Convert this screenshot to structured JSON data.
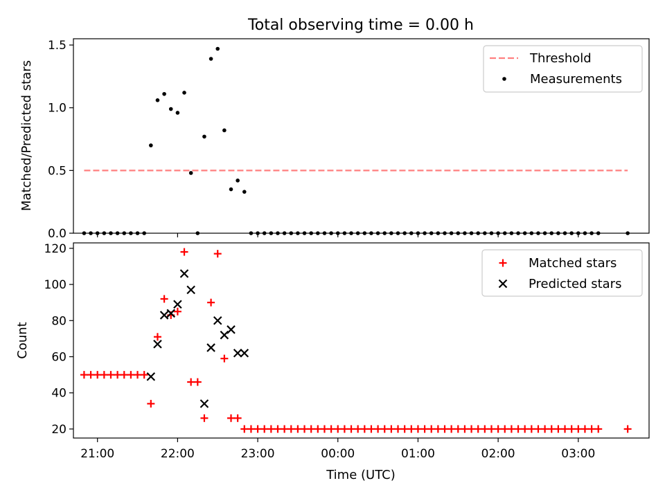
{
  "chart_data": [
    {
      "type": "scatter",
      "title": "Total observing time = 0.00 h",
      "ylabel": "Matched/Predicted stars",
      "xlabel": "",
      "xlim": [
        "20:42",
        "03:53"
      ],
      "ylim": [
        0,
        1.55
      ],
      "yticks": [
        0,
        0.5,
        1.0,
        1.5
      ],
      "ytick_labels": [
        "0.0",
        "0.5",
        "1.0",
        "1.5"
      ],
      "legend_position": "top-right",
      "threshold": {
        "name": "Threshold",
        "value": 0.5,
        "x_start": "20:50",
        "x_end": "03:37",
        "color": "#ff7f7f"
      },
      "series": [
        {
          "name": "Measurements",
          "color": "#000000",
          "points": [
            [
              "20:50",
              0
            ],
            [
              "20:55",
              0
            ],
            [
              "21:00",
              0
            ],
            [
              "21:05",
              0
            ],
            [
              "21:10",
              0
            ],
            [
              "21:15",
              0
            ],
            [
              "21:20",
              0
            ],
            [
              "21:25",
              0
            ],
            [
              "21:30",
              0
            ],
            [
              "21:35",
              0
            ],
            [
              "21:40",
              0.7
            ],
            [
              "21:45",
              1.06
            ],
            [
              "21:50",
              1.11
            ],
            [
              "21:55",
              0.99
            ],
            [
              "22:00",
              0.96
            ],
            [
              "22:05",
              1.12
            ],
            [
              "22:10",
              0.48
            ],
            [
              "22:15",
              0
            ],
            [
              "22:20",
              0.77
            ],
            [
              "22:25",
              1.39
            ],
            [
              "22:30",
              1.47
            ],
            [
              "22:35",
              0.82
            ],
            [
              "22:40",
              0.35
            ],
            [
              "22:45",
              0.42
            ],
            [
              "22:50",
              0.33
            ],
            [
              "22:55",
              0
            ],
            [
              "23:00",
              0
            ],
            [
              "23:05",
              0
            ],
            [
              "23:10",
              0
            ],
            [
              "23:15",
              0
            ],
            [
              "23:20",
              0
            ],
            [
              "23:25",
              0
            ],
            [
              "23:30",
              0
            ],
            [
              "23:35",
              0
            ],
            [
              "23:40",
              0
            ],
            [
              "23:45",
              0
            ],
            [
              "23:50",
              0
            ],
            [
              "23:55",
              0
            ],
            [
              "00:00",
              0
            ],
            [
              "00:05",
              0
            ],
            [
              "00:10",
              0
            ],
            [
              "00:15",
              0
            ],
            [
              "00:20",
              0
            ],
            [
              "00:25",
              0
            ],
            [
              "00:30",
              0
            ],
            [
              "00:35",
              0
            ],
            [
              "00:40",
              0
            ],
            [
              "00:45",
              0
            ],
            [
              "00:50",
              0
            ],
            [
              "00:55",
              0
            ],
            [
              "01:00",
              0
            ],
            [
              "01:05",
              0
            ],
            [
              "01:10",
              0
            ],
            [
              "01:15",
              0
            ],
            [
              "01:20",
              0
            ],
            [
              "01:25",
              0
            ],
            [
              "01:30",
              0
            ],
            [
              "01:35",
              0
            ],
            [
              "01:40",
              0
            ],
            [
              "01:45",
              0
            ],
            [
              "01:50",
              0
            ],
            [
              "01:55",
              0
            ],
            [
              "02:00",
              0
            ],
            [
              "02:05",
              0
            ],
            [
              "02:10",
              0
            ],
            [
              "02:15",
              0
            ],
            [
              "02:20",
              0
            ],
            [
              "02:25",
              0
            ],
            [
              "02:30",
              0
            ],
            [
              "02:35",
              0
            ],
            [
              "02:40",
              0
            ],
            [
              "02:45",
              0
            ],
            [
              "02:50",
              0
            ],
            [
              "02:55",
              0
            ],
            [
              "03:00",
              0
            ],
            [
              "03:05",
              0
            ],
            [
              "03:10",
              0
            ],
            [
              "03:15",
              0
            ],
            [
              "03:37",
              0
            ]
          ]
        }
      ]
    },
    {
      "type": "scatter",
      "title": "",
      "xlabel": "Time (UTC)",
      "ylabel": "Count",
      "xlim": [
        "20:42",
        "03:53"
      ],
      "ylim": [
        15,
        123
      ],
      "xticks": [
        "21:00",
        "22:00",
        "23:00",
        "00:00",
        "01:00",
        "02:00",
        "03:00"
      ],
      "yticks": [
        20,
        40,
        60,
        80,
        100,
        120
      ],
      "legend_position": "top-right",
      "series": [
        {
          "name": "Matched stars",
          "marker": "+",
          "color": "#ff0000",
          "points": [
            [
              "20:50",
              50
            ],
            [
              "20:55",
              50
            ],
            [
              "21:00",
              50
            ],
            [
              "21:05",
              50
            ],
            [
              "21:10",
              50
            ],
            [
              "21:15",
              50
            ],
            [
              "21:20",
              50
            ],
            [
              "21:25",
              50
            ],
            [
              "21:30",
              50
            ],
            [
              "21:35",
              50
            ],
            [
              "21:40",
              34
            ],
            [
              "21:45",
              71
            ],
            [
              "21:50",
              92
            ],
            [
              "21:55",
              83
            ],
            [
              "22:00",
              85
            ],
            [
              "22:05",
              118
            ],
            [
              "22:10",
              46
            ],
            [
              "22:15",
              46
            ],
            [
              "22:20",
              26
            ],
            [
              "22:25",
              90
            ],
            [
              "22:30",
              117
            ],
            [
              "22:35",
              59
            ],
            [
              "22:40",
              26
            ],
            [
              "22:45",
              26
            ],
            [
              "22:50",
              20
            ],
            [
              "22:55",
              20
            ],
            [
              "23:00",
              20
            ],
            [
              "23:05",
              20
            ],
            [
              "23:10",
              20
            ],
            [
              "23:15",
              20
            ],
            [
              "23:20",
              20
            ],
            [
              "23:25",
              20
            ],
            [
              "23:30",
              20
            ],
            [
              "23:35",
              20
            ],
            [
              "23:40",
              20
            ],
            [
              "23:45",
              20
            ],
            [
              "23:50",
              20
            ],
            [
              "23:55",
              20
            ],
            [
              "00:00",
              20
            ],
            [
              "00:05",
              20
            ],
            [
              "00:10",
              20
            ],
            [
              "00:15",
              20
            ],
            [
              "00:20",
              20
            ],
            [
              "00:25",
              20
            ],
            [
              "00:30",
              20
            ],
            [
              "00:35",
              20
            ],
            [
              "00:40",
              20
            ],
            [
              "00:45",
              20
            ],
            [
              "00:50",
              20
            ],
            [
              "00:55",
              20
            ],
            [
              "01:00",
              20
            ],
            [
              "01:05",
              20
            ],
            [
              "01:10",
              20
            ],
            [
              "01:15",
              20
            ],
            [
              "01:20",
              20
            ],
            [
              "01:25",
              20
            ],
            [
              "01:30",
              20
            ],
            [
              "01:35",
              20
            ],
            [
              "01:40",
              20
            ],
            [
              "01:45",
              20
            ],
            [
              "01:50",
              20
            ],
            [
              "01:55",
              20
            ],
            [
              "02:00",
              20
            ],
            [
              "02:05",
              20
            ],
            [
              "02:10",
              20
            ],
            [
              "02:15",
              20
            ],
            [
              "02:20",
              20
            ],
            [
              "02:25",
              20
            ],
            [
              "02:30",
              20
            ],
            [
              "02:35",
              20
            ],
            [
              "02:40",
              20
            ],
            [
              "02:45",
              20
            ],
            [
              "02:50",
              20
            ],
            [
              "02:55",
              20
            ],
            [
              "03:00",
              20
            ],
            [
              "03:05",
              20
            ],
            [
              "03:10",
              20
            ],
            [
              "03:15",
              20
            ],
            [
              "03:37",
              20
            ]
          ]
        },
        {
          "name": "Predicted stars",
          "marker": "x",
          "color": "#000000",
          "points": [
            [
              "21:40",
              49
            ],
            [
              "21:45",
              67
            ],
            [
              "21:50",
              83
            ],
            [
              "21:55",
              84
            ],
            [
              "22:00",
              89
            ],
            [
              "22:05",
              106
            ],
            [
              "22:10",
              97
            ],
            [
              "22:20",
              34
            ],
            [
              "22:25",
              65
            ],
            [
              "22:30",
              80
            ],
            [
              "22:35",
              72
            ],
            [
              "22:40",
              75
            ],
            [
              "22:45",
              62
            ],
            [
              "22:50",
              62
            ]
          ]
        }
      ]
    }
  ]
}
